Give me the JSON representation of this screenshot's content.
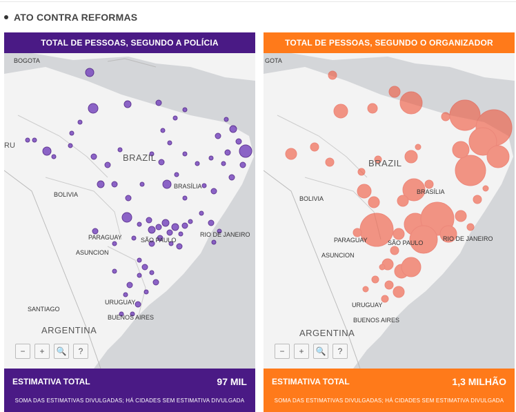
{
  "section_title": "ATO CONTRA REFORMAS",
  "colors": {
    "purple": "#4a1a85",
    "orange": "#ff7a1a",
    "purple_dot": "#7a4bbf",
    "orange_dot": "#f0553a"
  },
  "map_controls": [
    "−",
    "+",
    "🔍",
    "?"
  ],
  "panels": {
    "left": {
      "header": "TOTAL DE PESSOAS, SEGUNDO A POLÍCIA",
      "total_label": "ESTIMATIVA TOTAL",
      "total_value": "97 MIL",
      "note": "SOMA DAS ESTIMATIVAS DIVULGADAS; HÁ CIDADES SEM ESTIMATIVA DIVULGADA",
      "labels": {
        "bogota": "BOGOTA",
        "peru": "RU",
        "brazil": "BRAZIL",
        "bolivia": "BOLIVIA",
        "brasilia": "BRASÍLIA",
        "paraguay": "PARAGUAY",
        "sao_paulo": "SÃO PAULO",
        "rio": "RIO DE JANEIRO",
        "asuncion": "ASUNCION",
        "santiago": "SANTIAGO",
        "uruguay": "URUGUAY",
        "buenos_aires": "BUENOS AIRES",
        "argentina": "ARGENTINA"
      }
    },
    "right": {
      "header": "TOTAL DE PESSOAS, SEGUNDO O ORGANIZADOR",
      "total_label": "ESTIMATIVA TOTAL",
      "total_value": "1,3 MILHÃO",
      "note": "SOMA DAS ESTIMATIVAS DIVULGADAS; HÁ CIDADES SEM ESTIMATIVA DIVULGADA",
      "labels": {
        "bogota": "GOTA",
        "brazil": "BRAZIL",
        "bolivia": "BOLIVIA",
        "brasilia": "BRASÍLIA",
        "paraguay": "PARAGUAY",
        "sao_paulo": "SÃO PAULO",
        "rio": "RIO DE JANEIRO",
        "asuncion": "ASUNCION",
        "uruguay": "URUGUAY",
        "buenos_aires": "BUENOS AIRES",
        "argentina": "ARGENTINA"
      }
    }
  }
}
